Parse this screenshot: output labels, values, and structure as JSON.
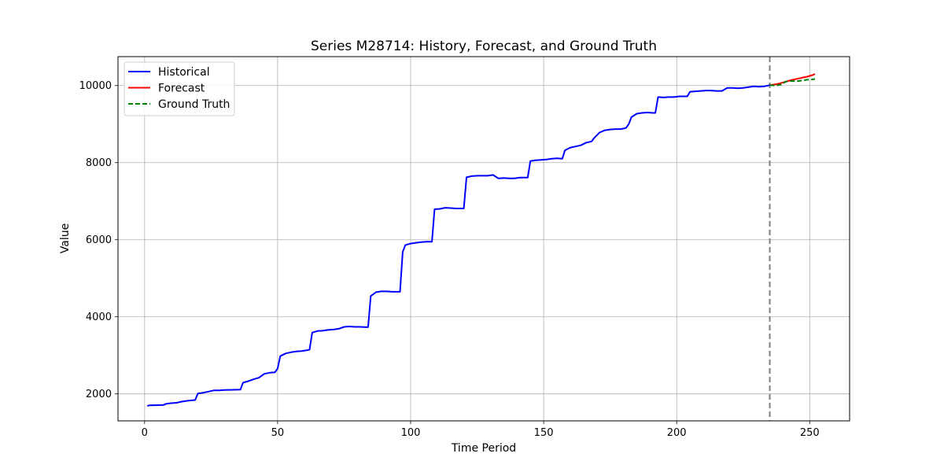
{
  "chart_data": {
    "type": "line",
    "title": "Series M28714: History, Forecast, and Ground Truth",
    "xlabel": "Time Period",
    "ylabel": "Value",
    "xlim": [
      -10,
      265
    ],
    "ylim": [
      1300,
      10750
    ],
    "xticks": [
      0,
      50,
      100,
      150,
      200,
      250
    ],
    "yticks": [
      2000,
      4000,
      6000,
      8000,
      10000
    ],
    "grid": true,
    "legend_position": "top-left",
    "forecast_start": 235,
    "series": [
      {
        "name": "Historical",
        "color": "#0000ff",
        "style": "solid",
        "points": [
          [
            1,
            1690
          ],
          [
            2,
            1705
          ],
          [
            7,
            1710
          ],
          [
            8,
            1740
          ],
          [
            10,
            1760
          ],
          [
            12,
            1770
          ],
          [
            14,
            1800
          ],
          [
            16,
            1820
          ],
          [
            19,
            1840
          ],
          [
            20,
            2010
          ],
          [
            22,
            2030
          ],
          [
            24,
            2060
          ],
          [
            26,
            2090
          ],
          [
            28,
            2090
          ],
          [
            30,
            2100
          ],
          [
            32,
            2105
          ],
          [
            36,
            2110
          ],
          [
            37,
            2290
          ],
          [
            39,
            2330
          ],
          [
            41,
            2380
          ],
          [
            43,
            2420
          ],
          [
            45,
            2520
          ],
          [
            47,
            2550
          ],
          [
            49,
            2560
          ],
          [
            50,
            2660
          ],
          [
            51,
            2980
          ],
          [
            53,
            3050
          ],
          [
            55,
            3080
          ],
          [
            57,
            3100
          ],
          [
            59,
            3110
          ],
          [
            61,
            3130
          ],
          [
            62,
            3150
          ],
          [
            63,
            3590
          ],
          [
            65,
            3630
          ],
          [
            67,
            3640
          ],
          [
            69,
            3660
          ],
          [
            71,
            3670
          ],
          [
            73,
            3690
          ],
          [
            75,
            3740
          ],
          [
            77,
            3750
          ],
          [
            79,
            3740
          ],
          [
            81,
            3740
          ],
          [
            83,
            3730
          ],
          [
            84,
            3730
          ],
          [
            85,
            4540
          ],
          [
            87,
            4640
          ],
          [
            89,
            4660
          ],
          [
            91,
            4660
          ],
          [
            93,
            4650
          ],
          [
            95,
            4650
          ],
          [
            96,
            4650
          ],
          [
            97,
            5680
          ],
          [
            98,
            5860
          ],
          [
            100,
            5900
          ],
          [
            102,
            5920
          ],
          [
            104,
            5940
          ],
          [
            106,
            5950
          ],
          [
            108,
            5950
          ],
          [
            109,
            6790
          ],
          [
            111,
            6800
          ],
          [
            113,
            6830
          ],
          [
            115,
            6820
          ],
          [
            117,
            6810
          ],
          [
            119,
            6810
          ],
          [
            120,
            6810
          ],
          [
            121,
            7620
          ],
          [
            123,
            7650
          ],
          [
            125,
            7660
          ],
          [
            127,
            7660
          ],
          [
            129,
            7660
          ],
          [
            131,
            7680
          ],
          [
            133,
            7590
          ],
          [
            135,
            7600
          ],
          [
            137,
            7590
          ],
          [
            139,
            7590
          ],
          [
            141,
            7610
          ],
          [
            143,
            7610
          ],
          [
            144,
            7610
          ],
          [
            145,
            8040
          ],
          [
            147,
            8060
          ],
          [
            149,
            8070
          ],
          [
            151,
            8080
          ],
          [
            153,
            8100
          ],
          [
            155,
            8110
          ],
          [
            157,
            8100
          ],
          [
            158,
            8320
          ],
          [
            160,
            8390
          ],
          [
            162,
            8420
          ],
          [
            164,
            8450
          ],
          [
            166,
            8520
          ],
          [
            168,
            8550
          ],
          [
            169,
            8640
          ],
          [
            171,
            8780
          ],
          [
            173,
            8840
          ],
          [
            175,
            8860
          ],
          [
            177,
            8870
          ],
          [
            179,
            8870
          ],
          [
            181,
            8900
          ],
          [
            182,
            9000
          ],
          [
            183,
            9180
          ],
          [
            185,
            9270
          ],
          [
            187,
            9290
          ],
          [
            189,
            9300
          ],
          [
            191,
            9290
          ],
          [
            192,
            9290
          ],
          [
            193,
            9700
          ],
          [
            195,
            9690
          ],
          [
            197,
            9700
          ],
          [
            199,
            9700
          ],
          [
            201,
            9720
          ],
          [
            203,
            9720
          ],
          [
            204,
            9720
          ],
          [
            205,
            9840
          ],
          [
            207,
            9850
          ],
          [
            209,
            9860
          ],
          [
            211,
            9870
          ],
          [
            213,
            9870
          ],
          [
            215,
            9860
          ],
          [
            217,
            9860
          ],
          [
            219,
            9940
          ],
          [
            221,
            9940
          ],
          [
            223,
            9930
          ],
          [
            225,
            9940
          ],
          [
            227,
            9960
          ],
          [
            229,
            9980
          ],
          [
            231,
            9970
          ],
          [
            233,
            9980
          ],
          [
            235,
            10010
          ]
        ]
      },
      {
        "name": "Forecast",
        "color": "#ff0000",
        "style": "solid",
        "points": [
          [
            235,
            10010
          ],
          [
            237,
            10030
          ],
          [
            239,
            10060
          ],
          [
            241,
            10100
          ],
          [
            243,
            10140
          ],
          [
            245,
            10170
          ],
          [
            247,
            10200
          ],
          [
            249,
            10230
          ],
          [
            251,
            10270
          ],
          [
            252,
            10300
          ]
        ]
      },
      {
        "name": "Ground Truth",
        "color": "#008000",
        "style": "dashed",
        "points": [
          [
            235,
            10010
          ],
          [
            237,
            10000
          ],
          [
            239,
            10020
          ],
          [
            241,
            10100
          ],
          [
            243,
            10120
          ],
          [
            245,
            10110
          ],
          [
            247,
            10130
          ],
          [
            249,
            10150
          ],
          [
            251,
            10160
          ],
          [
            252,
            10170
          ]
        ]
      }
    ]
  }
}
